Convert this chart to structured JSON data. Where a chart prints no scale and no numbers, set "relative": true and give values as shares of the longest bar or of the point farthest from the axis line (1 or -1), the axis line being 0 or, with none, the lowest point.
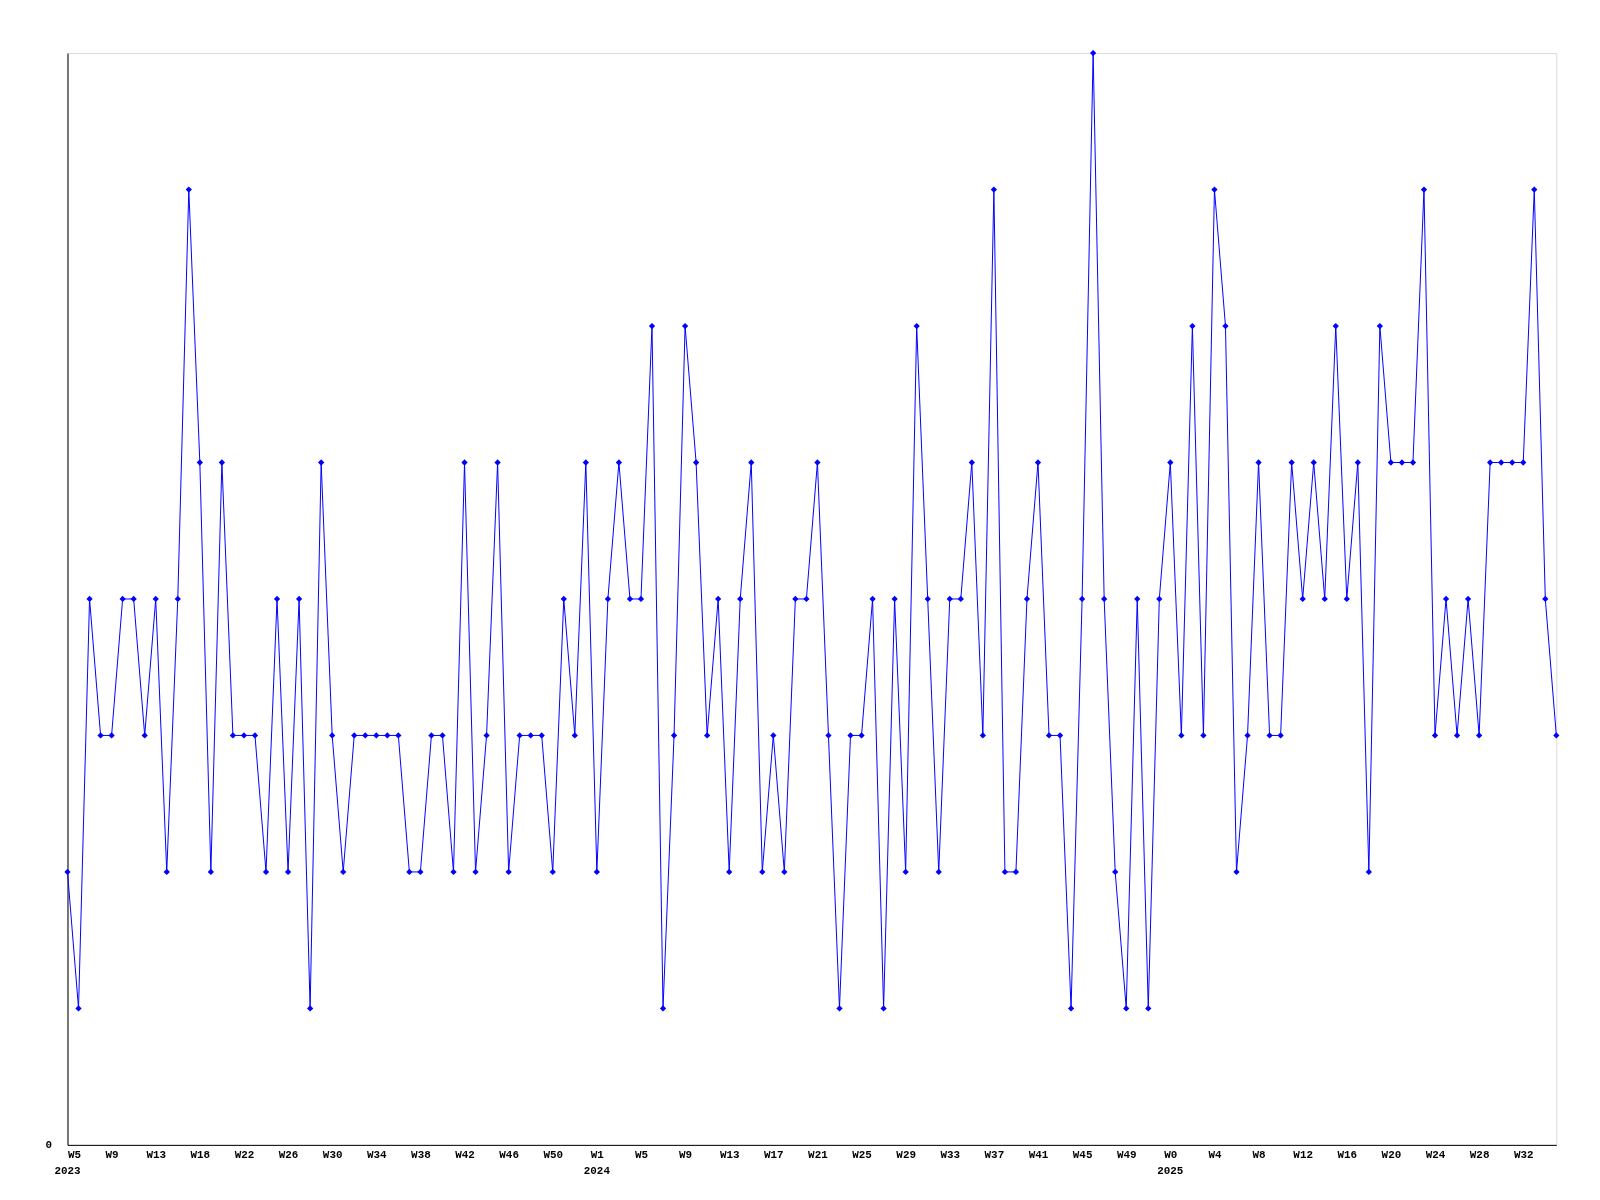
{
  "chart_data": {
    "type": "line",
    "relative": true,
    "color": "#0000ff",
    "marker": "diamond",
    "line_style": "solid",
    "grid": false,
    "categories": [
      "W5\n2023",
      null,
      null,
      null,
      "W9",
      null,
      null,
      null,
      "W13",
      null,
      null,
      null,
      "W18",
      null,
      null,
      null,
      "W22",
      null,
      null,
      null,
      "W26",
      null,
      null,
      null,
      "W30",
      null,
      null,
      null,
      "W34",
      null,
      null,
      null,
      "W38",
      null,
      null,
      null,
      "W42",
      null,
      null,
      null,
      "W46",
      null,
      null,
      null,
      "W50",
      null,
      null,
      null,
      "W1\n2024",
      null,
      null,
      null,
      "W5",
      null,
      null,
      null,
      "W9",
      null,
      null,
      null,
      "W13",
      null,
      null,
      null,
      "W17",
      null,
      null,
      null,
      "W21",
      null,
      null,
      null,
      "W25",
      null,
      null,
      null,
      "W29",
      null,
      null,
      null,
      "W33",
      null,
      null,
      null,
      "W37",
      null,
      null,
      null,
      "W41",
      null,
      null,
      null,
      "W45",
      null,
      null,
      null,
      "W49",
      null,
      null,
      null,
      "W0\n2025",
      null,
      null,
      null,
      "W4",
      null,
      null,
      null,
      "W8",
      null,
      null,
      null,
      "W12",
      null,
      null,
      null,
      "W16",
      null,
      null,
      null,
      "W20",
      null,
      null,
      null,
      "W24",
      null,
      null,
      null,
      "W28",
      null,
      null,
      null,
      "W32",
      null,
      null,
      null
    ],
    "values": [
      0.25,
      0.125,
      0.5,
      0.375,
      0.375,
      0.5,
      0.5,
      0.375,
      0.5,
      0.25,
      0.5,
      0.875,
      0.625,
      0.25,
      0.625,
      0.375,
      0.375,
      0.375,
      0.25,
      0.5,
      0.25,
      0.5,
      0.125,
      0.625,
      0.375,
      0.25,
      0.375,
      0.375,
      0.375,
      0.375,
      0.375,
      0.25,
      0.25,
      0.375,
      0.375,
      0.25,
      0.625,
      0.25,
      0.375,
      0.625,
      0.25,
      0.375,
      0.375,
      0.375,
      0.25,
      0.5,
      0.375,
      0.625,
      0.25,
      0.5,
      0.625,
      0.5,
      0.5,
      0.75,
      0.125,
      0.375,
      0.75,
      0.625,
      0.375,
      0.5,
      0.25,
      0.5,
      0.625,
      0.25,
      0.375,
      0.25,
      0.5,
      0.5,
      0.625,
      0.375,
      0.125,
      0.375,
      0.375,
      0.5,
      0.125,
      0.5,
      0.25,
      0.75,
      0.5,
      0.25,
      0.5,
      0.5,
      0.625,
      0.375,
      0.875,
      0.25,
      0.25,
      0.5,
      0.625,
      0.375,
      0.375,
      0.125,
      0.5,
      1,
      0.5,
      0.25,
      0.125,
      0.5,
      0.125,
      0.5,
      0.625,
      0.375,
      0.75,
      0.375,
      0.875,
      0.75,
      0.25,
      0.375,
      0.625,
      0.375,
      0.375,
      0.625,
      0.5,
      0.625,
      0.5,
      0.75,
      0.5,
      0.625,
      0.25,
      0.75,
      0.625,
      0.625,
      0.625,
      0.875,
      0.375,
      0.5,
      0.375,
      0.5,
      0.375,
      0.625,
      0.625,
      0.625,
      0.625,
      0.875,
      0.5,
      0.375
    ],
    "annotations": [
      "0"
    ]
  }
}
